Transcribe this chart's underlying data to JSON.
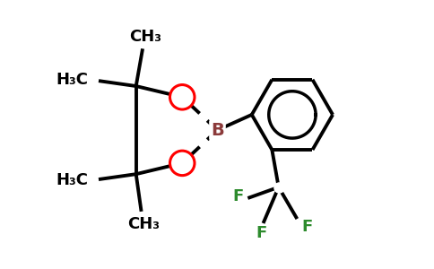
{
  "background_color": "#ffffff",
  "bond_color": "#000000",
  "O_color": "#ff0000",
  "B_color": "#8b3a3a",
  "F_color": "#2d8b2d",
  "figsize": [
    4.84,
    3.0
  ],
  "dpi": 100,
  "lw": 2.8,
  "ring_lw": 2.8,
  "inner_circle_lw": 2.5,
  "font_size_label": 13,
  "font_size_atom": 13,
  "font_size_B": 14,
  "xlim": [
    0,
    9.68
  ],
  "ylim": [
    0,
    6.0
  ]
}
